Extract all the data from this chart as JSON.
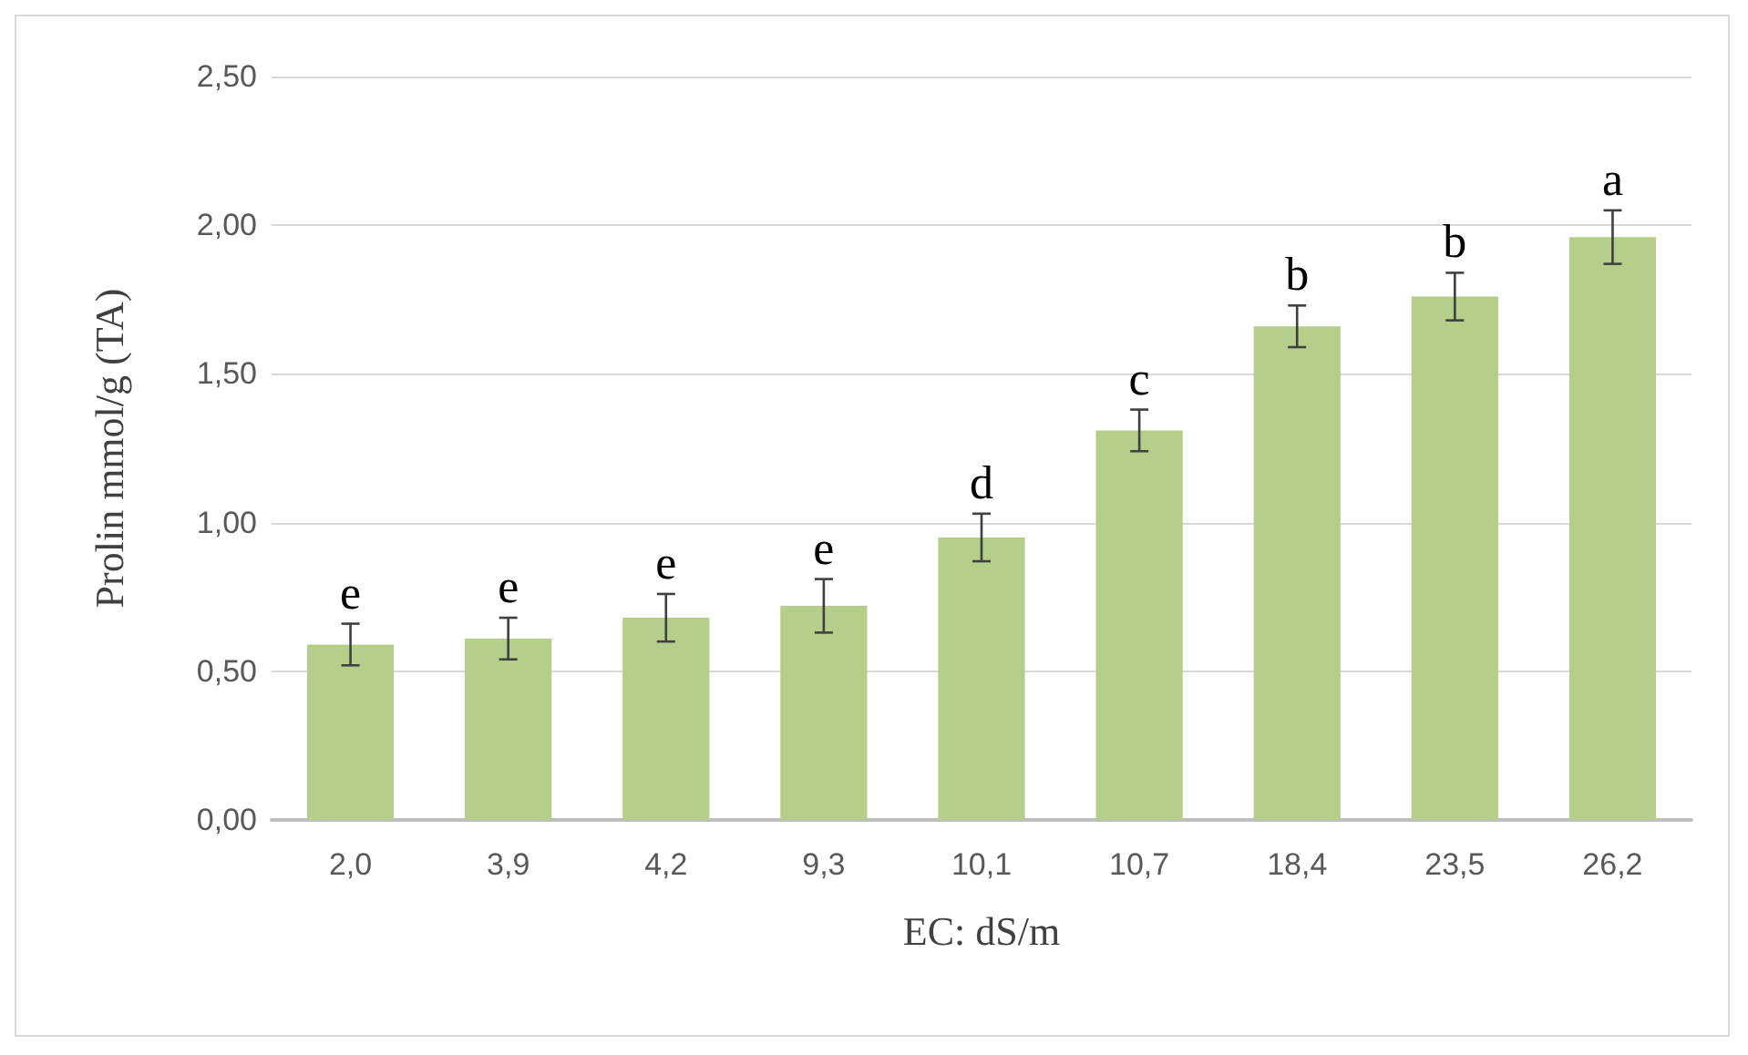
{
  "chart_data": {
    "type": "bar",
    "xlabel": "EC: dS/m",
    "ylabel": "Prolin mmol/g (TA)",
    "categories": [
      "2,0",
      "3,9",
      "4,2",
      "9,3",
      "10,1",
      "10,7",
      "18,4",
      "23,5",
      "26,2"
    ],
    "values": [
      0.59,
      0.61,
      0.68,
      0.72,
      0.95,
      1.31,
      1.66,
      1.76,
      1.96
    ],
    "errors": [
      0.07,
      0.07,
      0.08,
      0.09,
      0.08,
      0.07,
      0.07,
      0.08,
      0.09
    ],
    "color": "#b5cf8a",
    "ylim": [
      0,
      2.5
    ],
    "yticks": [
      {
        "value": 0,
        "label": "0,00"
      },
      {
        "value": 0.5,
        "label": "0,50"
      },
      {
        "value": 1,
        "label": "1,00"
      },
      {
        "value": 1.5,
        "label": "1,50"
      },
      {
        "value": 2,
        "label": "2,00"
      },
      {
        "value": 2.5,
        "label": "2,50"
      }
    ],
    "grid": "y",
    "annotations": [
      {
        "text": "e",
        "x": "2,0",
        "y": 0.66
      },
      {
        "text": "e",
        "x": "3,9",
        "y": 0.68
      },
      {
        "text": "e",
        "x": "4,2",
        "y": 0.76
      },
      {
        "text": "e",
        "x": "9,3",
        "y": 0.81
      },
      {
        "text": "d",
        "x": "10,1",
        "y": 1.03
      },
      {
        "text": "c",
        "x": "10,7",
        "y": 1.38
      },
      {
        "text": "b",
        "x": "18,4",
        "y": 1.73
      },
      {
        "text": "b",
        "x": "23,5",
        "y": 1.84
      },
      {
        "text": "a",
        "x": "26,2",
        "y": 2.05
      }
    ]
  }
}
